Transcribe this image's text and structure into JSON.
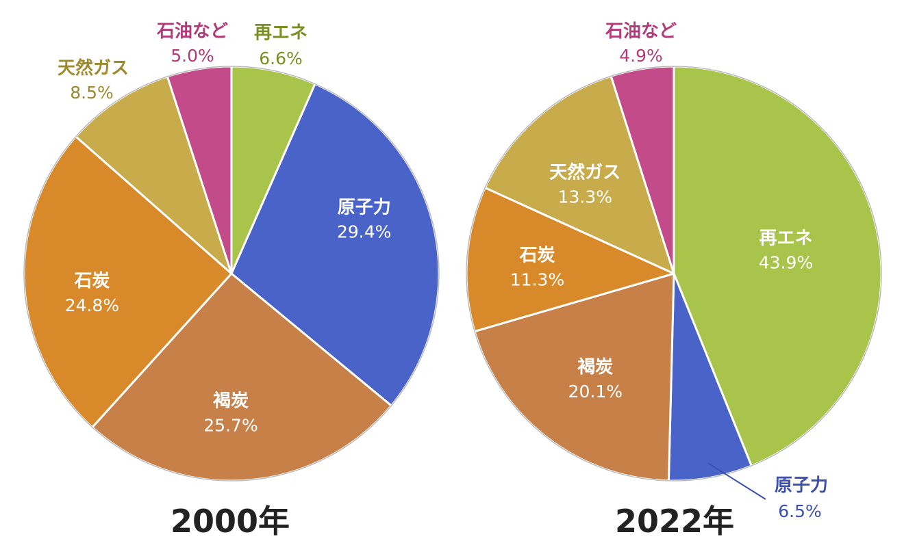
{
  "chart_data": [
    {
      "type": "pie",
      "title": "2000年",
      "slices": [
        {
          "name": "再エネ",
          "value": 6.6,
          "label": "6.6%",
          "color": "#a8c44a",
          "label_position": "outside"
        },
        {
          "name": "原子力",
          "value": 29.4,
          "label": "29.4%",
          "color": "#4a63c8",
          "label_position": "inside"
        },
        {
          "name": "褐炭",
          "value": 25.7,
          "label": "25.7%",
          "color": "#c88049",
          "label_position": "inside"
        },
        {
          "name": "石炭",
          "value": 24.8,
          "label": "24.8%",
          "color": "#d88a2a",
          "label_position": "inside"
        },
        {
          "name": "天然ガス",
          "value": 8.5,
          "label": "8.5%",
          "color": "#c8ac4c",
          "label_position": "outside"
        },
        {
          "name": "石油など",
          "value": 5.0,
          "label": "5.0%",
          "color": "#c44b8a",
          "label_position": "outside"
        }
      ]
    },
    {
      "type": "pie",
      "title": "2022年",
      "slices": [
        {
          "name": "再エネ",
          "value": 43.9,
          "label": "43.9%",
          "color": "#a8c44a",
          "label_position": "inside"
        },
        {
          "name": "原子力",
          "value": 6.5,
          "label": "6.5%",
          "color": "#4a63c8",
          "label_position": "outside"
        },
        {
          "name": "褐炭",
          "value": 20.1,
          "label": "20.1%",
          "color": "#c88049",
          "label_position": "inside"
        },
        {
          "name": "石炭",
          "value": 11.3,
          "label": "11.3%",
          "color": "#d88a2a",
          "label_position": "inside"
        },
        {
          "name": "天然ガス",
          "value": 13.3,
          "label": "13.3%",
          "color": "#c8ac4c",
          "label_position": "inside"
        },
        {
          "name": "石油など",
          "value": 4.9,
          "label": "4.9%",
          "color": "#c44b8a",
          "label_position": "outside"
        }
      ]
    }
  ],
  "outside_label_colors": {
    "再エネ": "#7a8f22",
    "原子力": "#3a4fb0",
    "天然ガス": "#9e8a2a",
    "石油など": "#b03a7a"
  }
}
